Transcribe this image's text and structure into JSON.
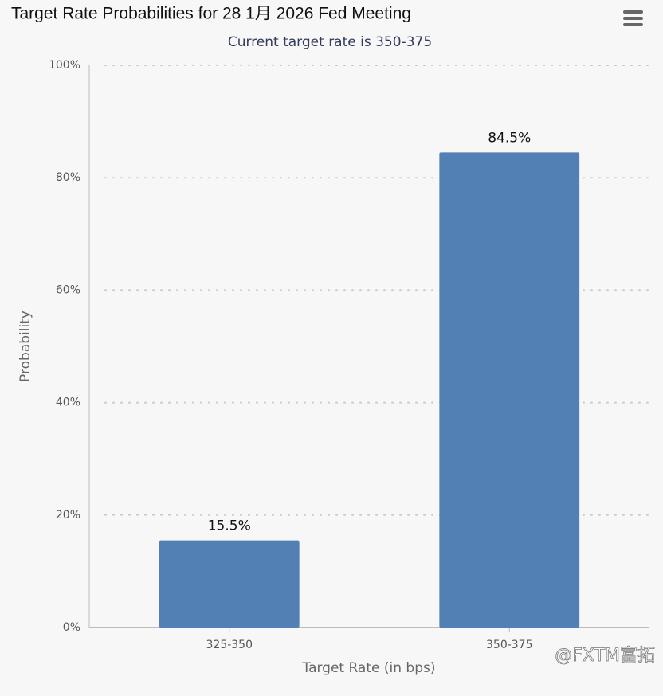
{
  "chart_data": {
    "type": "bar",
    "title": "Target Rate Probabilities for 28 1月 2026 Fed Meeting",
    "subtitle": "Current target rate is 350-375",
    "x_label": "Target Rate (in bps)",
    "y_label": "Probability",
    "categories": [
      "325-350",
      "350-375"
    ],
    "values": [
      15.5,
      84.5
    ],
    "value_labels": [
      "15.5%",
      "84.5%"
    ],
    "color": "#527fb4",
    "ylim": [
      0,
      100
    ],
    "yticks": [
      {
        "value": 0,
        "label": "0%"
      },
      {
        "value": 20,
        "label": "20%"
      },
      {
        "value": 40,
        "label": "40%"
      },
      {
        "value": 60,
        "label": "60%"
      },
      {
        "value": 80,
        "label": "80%"
      },
      {
        "value": 100,
        "label": "100%"
      }
    ],
    "grid": true,
    "watermark": "@FXTM富拓"
  }
}
